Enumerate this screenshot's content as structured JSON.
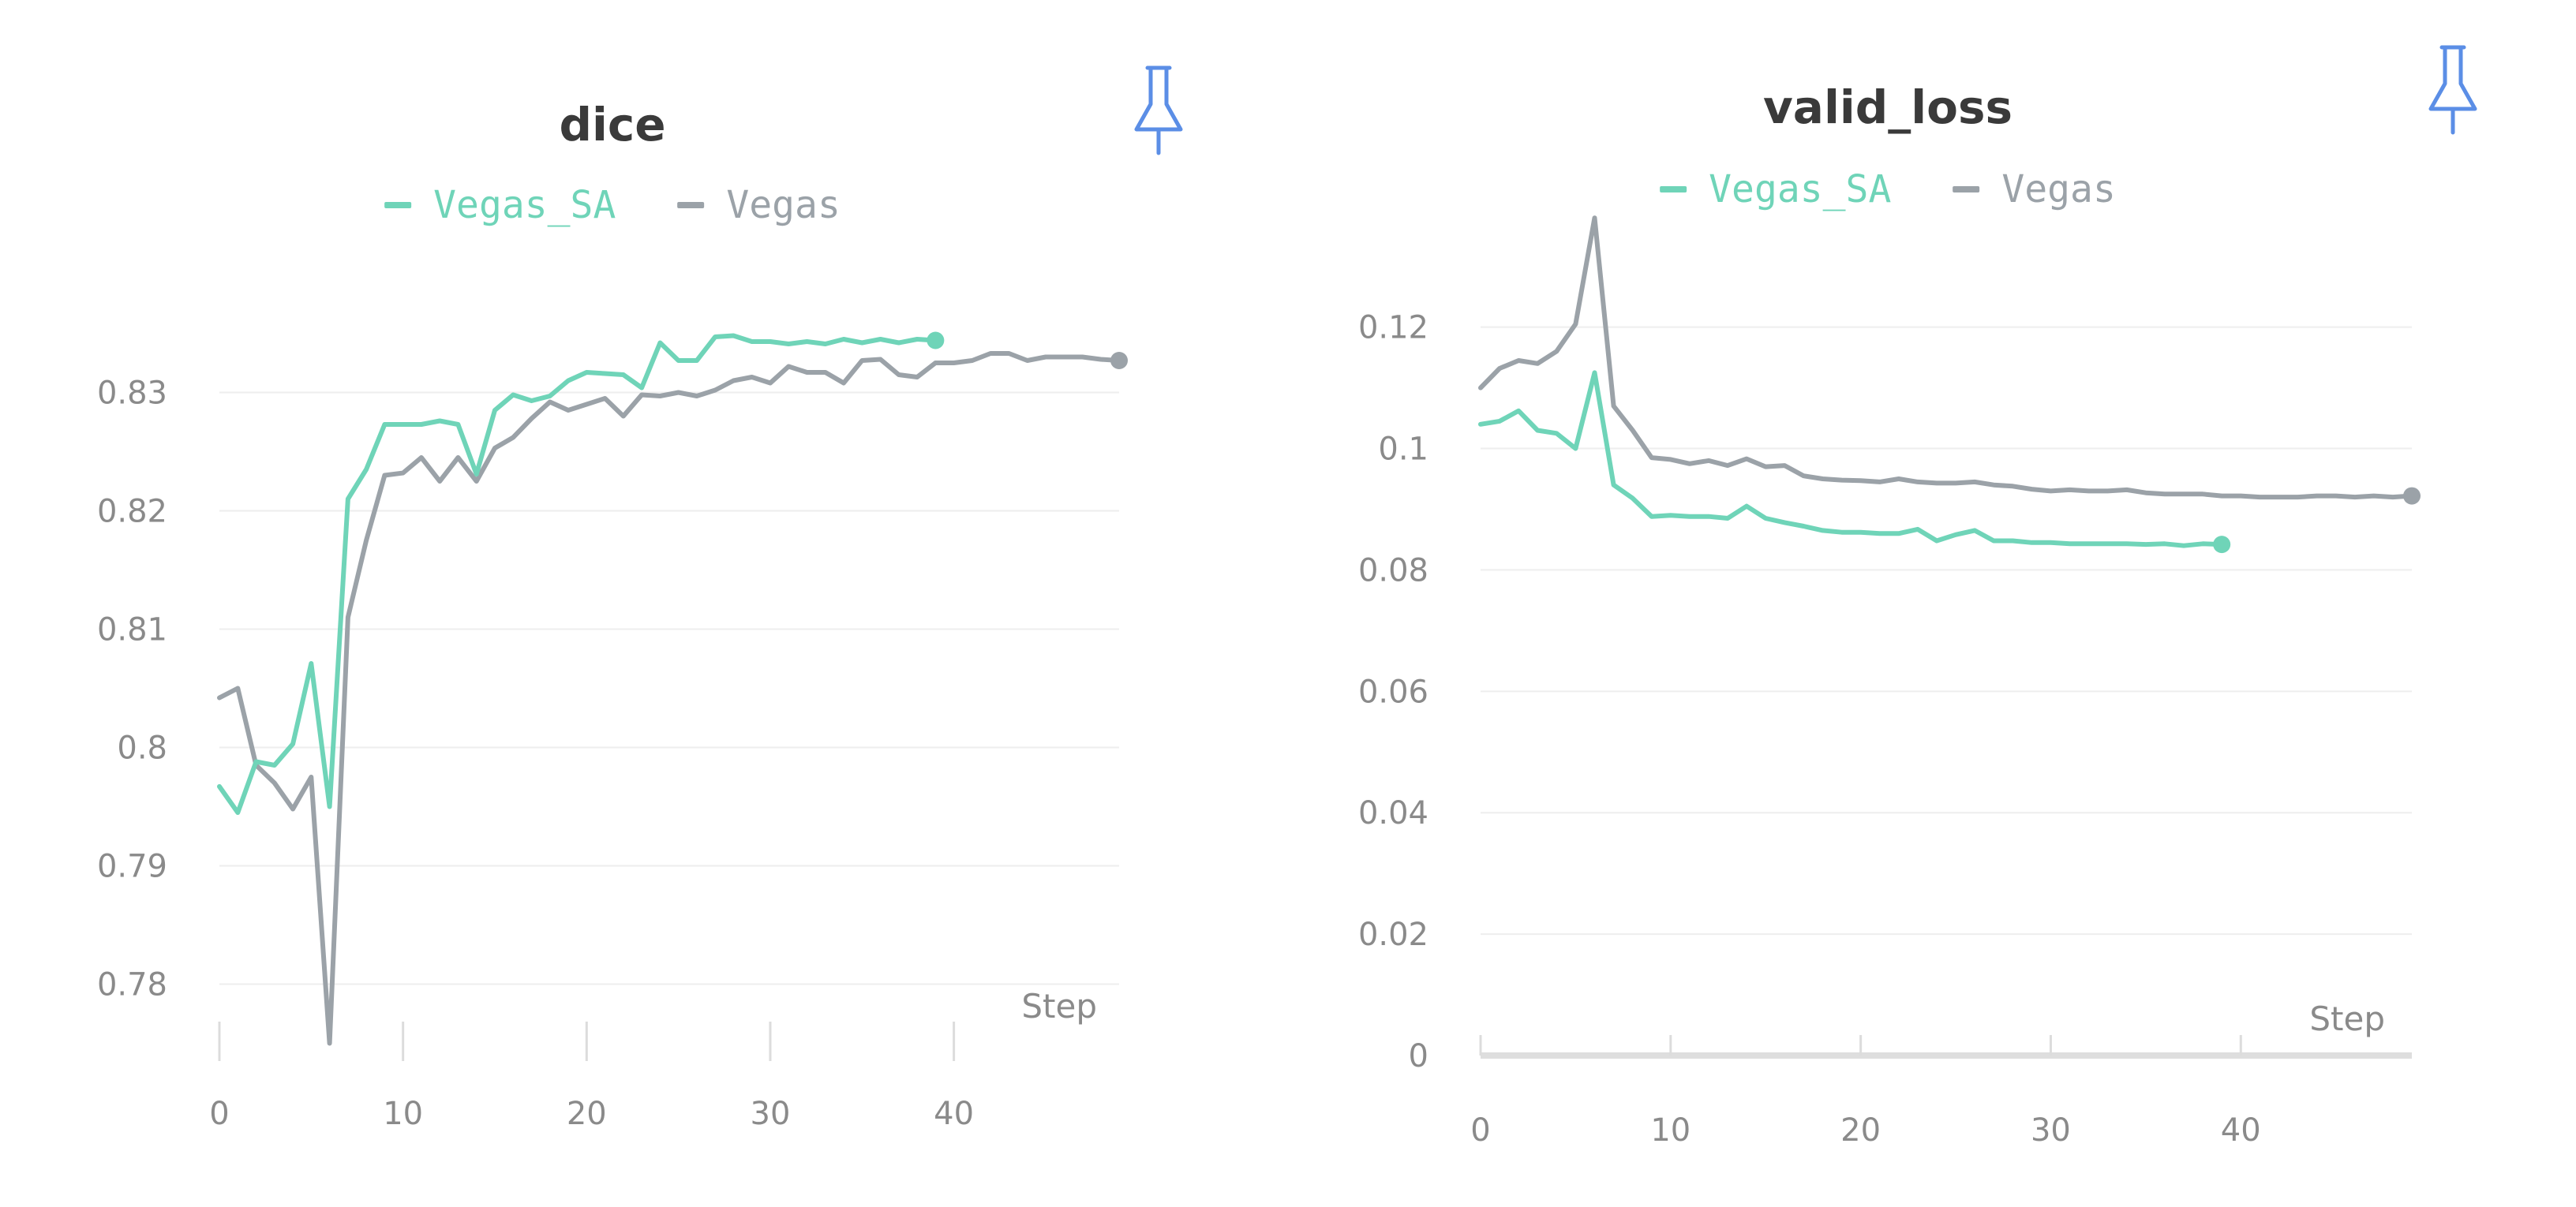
{
  "chart_data": [
    {
      "type": "line",
      "title": "dice",
      "xlabel": "Step",
      "ylabel": "",
      "xlim": [
        0,
        49
      ],
      "ylim": [
        0.7745,
        0.8385
      ],
      "x_ticks": [
        0,
        10,
        20,
        30,
        40
      ],
      "y_ticks": [
        0.78,
        0.79,
        0.8,
        0.81,
        0.82,
        0.83
      ],
      "y_tick_labels": [
        "0.78",
        "0.79",
        "0.8",
        "0.81",
        "0.82",
        "0.83"
      ],
      "grid": true,
      "legend_position": "top-center",
      "series": [
        {
          "name": "Vegas_SA",
          "color": "#6fd4b8",
          "x": [
            0,
            1,
            2,
            3,
            4,
            5,
            6,
            7,
            8,
            9,
            10,
            11,
            12,
            13,
            14,
            15,
            16,
            17,
            18,
            19,
            20,
            21,
            22,
            23,
            24,
            25,
            26,
            27,
            28,
            29,
            30,
            31,
            32,
            33,
            34,
            35,
            36,
            37,
            38,
            39
          ],
          "y": [
            0.7967,
            0.7945,
            0.7988,
            0.7985,
            0.8003,
            0.8071,
            0.795,
            0.821,
            0.8235,
            0.8273,
            0.8273,
            0.8273,
            0.8276,
            0.8273,
            0.8231,
            0.8285,
            0.8298,
            0.8293,
            0.8297,
            0.831,
            0.8317,
            0.8316,
            0.8315,
            0.8304,
            0.8342,
            0.8327,
            0.8327,
            0.8347,
            0.8348,
            0.8343,
            0.8343,
            0.8341,
            0.8343,
            0.8341,
            0.8345,
            0.8342,
            0.8345,
            0.8342,
            0.8345,
            0.8344
          ]
        },
        {
          "name": "Vegas",
          "color": "#9ba2a8",
          "x": [
            0,
            1,
            2,
            3,
            4,
            5,
            6,
            7,
            8,
            9,
            10,
            11,
            12,
            13,
            14,
            15,
            16,
            17,
            18,
            19,
            20,
            21,
            22,
            23,
            24,
            25,
            26,
            27,
            28,
            29,
            30,
            31,
            32,
            33,
            34,
            35,
            36,
            37,
            38,
            39,
            40,
            41,
            42,
            43,
            44,
            45,
            46,
            47,
            48,
            49
          ],
          "y": [
            0.8042,
            0.805,
            0.7985,
            0.797,
            0.7948,
            0.7975,
            0.775,
            0.811,
            0.8175,
            0.823,
            0.8232,
            0.8245,
            0.8225,
            0.8245,
            0.8225,
            0.8253,
            0.8262,
            0.8278,
            0.8292,
            0.8285,
            0.829,
            0.8295,
            0.828,
            0.8298,
            0.8297,
            0.83,
            0.8297,
            0.8302,
            0.831,
            0.8313,
            0.8308,
            0.8322,
            0.8317,
            0.8317,
            0.8308,
            0.8327,
            0.8328,
            0.8315,
            0.8313,
            0.8325,
            0.8325,
            0.8327,
            0.8333,
            0.8333,
            0.8327,
            0.833,
            0.833,
            0.833,
            0.8328,
            0.8327
          ]
        }
      ]
    },
    {
      "type": "line",
      "title": "valid_loss",
      "xlabel": "Step",
      "ylabel": "",
      "xlim": [
        0,
        49
      ],
      "ylim": [
        0,
        0.1375
      ],
      "x_ticks": [
        0,
        10,
        20,
        30,
        40
      ],
      "y_ticks": [
        0,
        0.02,
        0.04,
        0.06,
        0.08,
        0.1,
        0.12
      ],
      "y_tick_labels": [
        "0",
        "0.02",
        "0.04",
        "0.06",
        "0.08",
        "0.1",
        "0.12"
      ],
      "grid": true,
      "legend_position": "top-center",
      "series": [
        {
          "name": "Vegas_SA",
          "color": "#6fd4b8",
          "x": [
            0,
            1,
            2,
            3,
            4,
            5,
            6,
            7,
            8,
            9,
            10,
            11,
            12,
            13,
            14,
            15,
            16,
            17,
            18,
            19,
            20,
            21,
            22,
            23,
            24,
            25,
            26,
            27,
            28,
            29,
            30,
            31,
            32,
            33,
            34,
            35,
            36,
            37,
            38,
            39
          ],
          "y": [
            0.104,
            0.1045,
            0.1062,
            0.103,
            0.1025,
            0.1,
            0.1125,
            0.094,
            0.0918,
            0.0888,
            0.089,
            0.0888,
            0.0888,
            0.0885,
            0.0905,
            0.0885,
            0.0878,
            0.0872,
            0.0865,
            0.0862,
            0.0862,
            0.086,
            0.086,
            0.0867,
            0.0848,
            0.0858,
            0.0865,
            0.0848,
            0.0848,
            0.0845,
            0.0845,
            0.0843,
            0.0843,
            0.0843,
            0.0843,
            0.0842,
            0.0843,
            0.084,
            0.0843,
            0.0842
          ]
        },
        {
          "name": "Vegas",
          "color": "#9ba2a8",
          "x": [
            0,
            1,
            2,
            3,
            4,
            5,
            6,
            7,
            8,
            9,
            10,
            11,
            12,
            13,
            14,
            15,
            16,
            17,
            18,
            19,
            20,
            21,
            22,
            23,
            24,
            25,
            26,
            27,
            28,
            29,
            30,
            31,
            32,
            33,
            34,
            35,
            36,
            37,
            38,
            39,
            40,
            41,
            42,
            43,
            44,
            45,
            46,
            47,
            48,
            49
          ],
          "y": [
            0.11,
            0.1132,
            0.1145,
            0.114,
            0.116,
            0.1205,
            0.138,
            0.107,
            0.103,
            0.0985,
            0.0982,
            0.0975,
            0.098,
            0.0972,
            0.0983,
            0.097,
            0.0972,
            0.0955,
            0.095,
            0.0948,
            0.0947,
            0.0945,
            0.095,
            0.0945,
            0.0943,
            0.0943,
            0.0945,
            0.094,
            0.0938,
            0.0933,
            0.093,
            0.0932,
            0.093,
            0.093,
            0.0932,
            0.0927,
            0.0925,
            0.0925,
            0.0925,
            0.0922,
            0.0922,
            0.092,
            0.092,
            0.092,
            0.0922,
            0.0922,
            0.092,
            0.0922,
            0.092,
            0.0922
          ]
        }
      ]
    }
  ]
}
